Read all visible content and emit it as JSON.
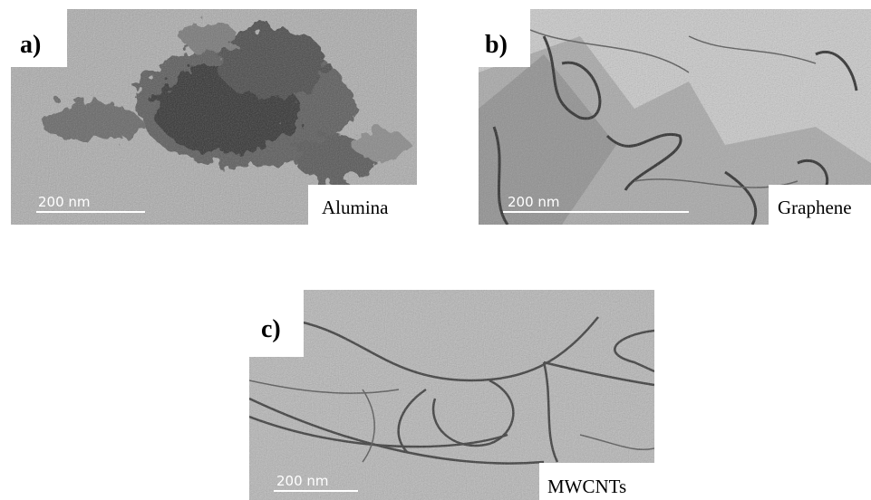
{
  "panels": [
    {
      "label": "a)",
      "scale": "200 nm",
      "name": "Alumina"
    },
    {
      "label": "b)",
      "scale": "200 nm",
      "name": "Graphene"
    },
    {
      "label": "c)",
      "scale": "200 nm",
      "name": "MWCNTs"
    }
  ]
}
